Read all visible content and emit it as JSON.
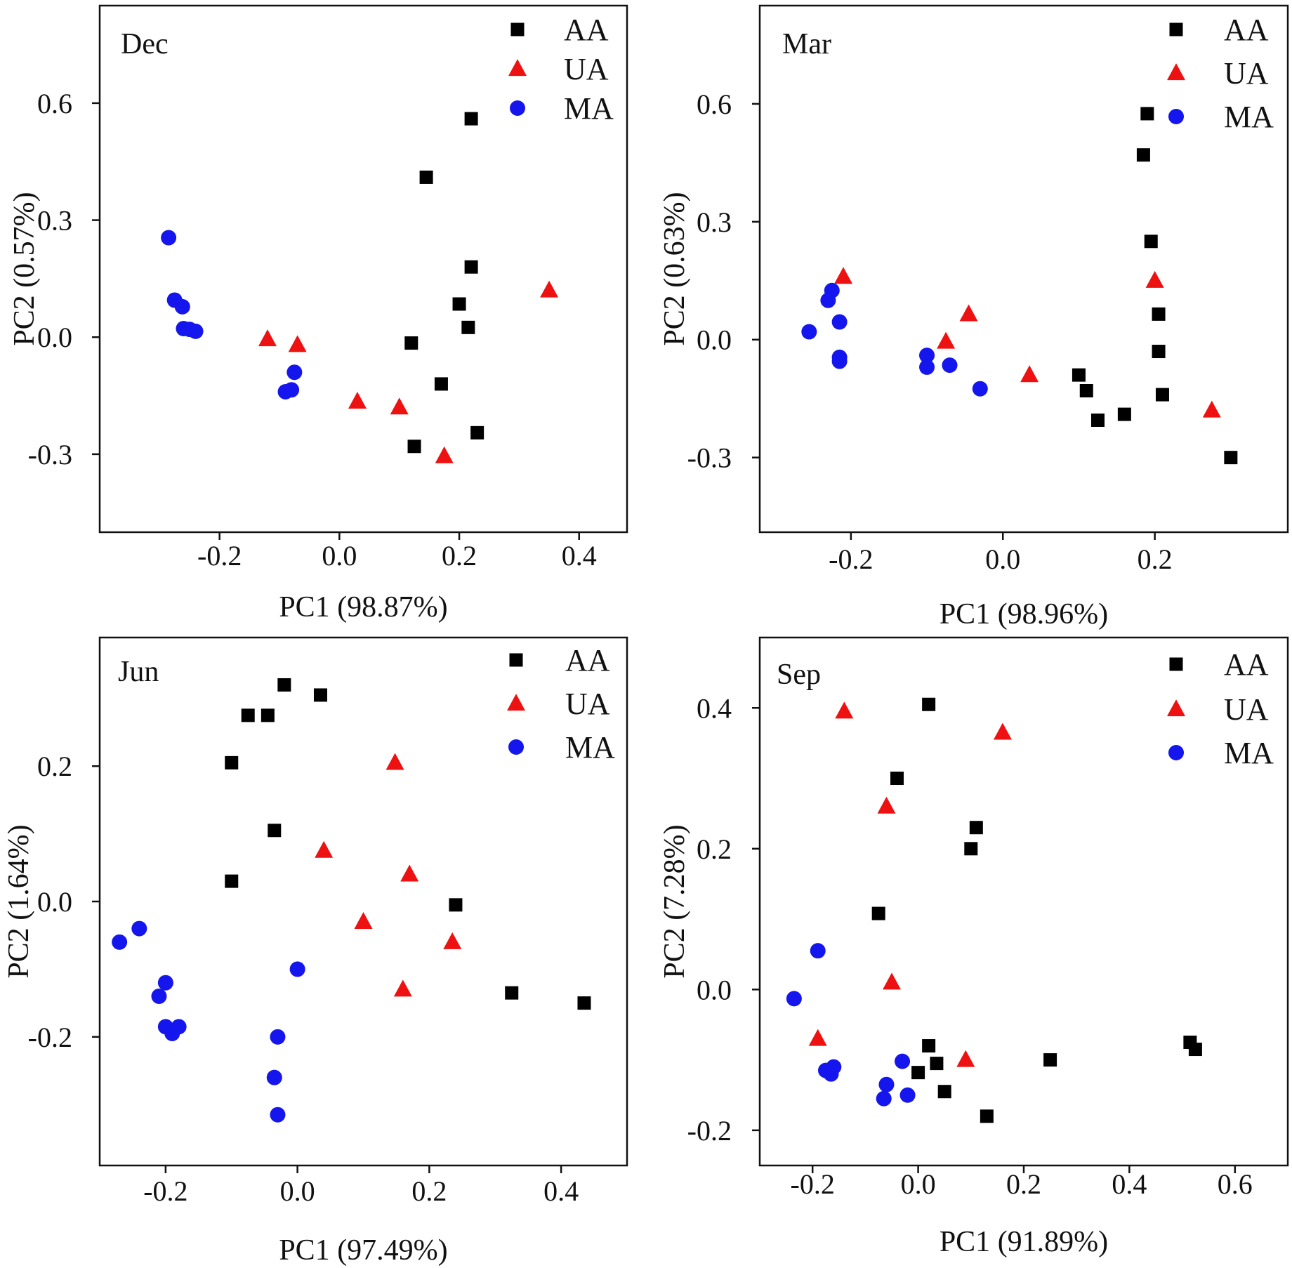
{
  "figure": {
    "legend_labels": [
      "AA",
      "UA",
      "MA"
    ],
    "colors": {
      "AA": "#000000",
      "UA": "#ee1111",
      "MA": "#1515ee"
    }
  },
  "chart_data": [
    {
      "type": "scatter",
      "panel": "Dec",
      "xlabel": "PC1 (98.87%)",
      "ylabel": "PC2 (0.57%)",
      "xlim": [
        -0.4,
        0.48
      ],
      "ylim": [
        -0.5,
        0.85
      ],
      "xticks": [
        -0.2,
        0.0,
        0.2,
        0.4
      ],
      "xtick_labels": [
        "-0.2",
        "0.0",
        "0.2",
        "0.4"
      ],
      "yticks": [
        -0.3,
        0.0,
        0.3,
        0.6
      ],
      "ytick_labels": [
        "-0.3",
        "0.0",
        "0.3",
        "0.6"
      ],
      "legend": [
        "AA",
        "UA",
        "MA"
      ],
      "series": [
        {
          "name": "AA",
          "marker": "square",
          "points": [
            [
              0.22,
              0.56
            ],
            [
              0.145,
              0.41
            ],
            [
              0.22,
              0.18
            ],
            [
              0.2,
              0.085
            ],
            [
              0.215,
              0.025
            ],
            [
              0.12,
              -0.015
            ],
            [
              0.17,
              -0.12
            ],
            [
              0.23,
              -0.245
            ],
            [
              0.125,
              -0.28
            ]
          ]
        },
        {
          "name": "UA",
          "marker": "triangle",
          "points": [
            [
              0.35,
              0.12
            ],
            [
              -0.12,
              -0.005
            ],
            [
              -0.07,
              -0.02
            ],
            [
              0.03,
              -0.165
            ],
            [
              0.1,
              -0.18
            ],
            [
              0.175,
              -0.305
            ]
          ]
        },
        {
          "name": "MA",
          "marker": "circle",
          "points": [
            [
              -0.285,
              0.255
            ],
            [
              -0.275,
              0.095
            ],
            [
              -0.262,
              0.078
            ],
            [
              -0.26,
              0.022
            ],
            [
              -0.25,
              0.02
            ],
            [
              -0.24,
              0.015
            ],
            [
              -0.075,
              -0.09
            ],
            [
              -0.08,
              -0.135
            ],
            [
              -0.09,
              -0.14
            ]
          ]
        }
      ]
    },
    {
      "type": "scatter",
      "panel": "Mar",
      "xlabel": "PC1 (98.96%)",
      "ylabel": "PC2 (0.63%)",
      "xlim": [
        -0.32,
        0.375
      ],
      "ylim": [
        -0.49,
        0.85
      ],
      "xticks": [
        -0.2,
        0.0,
        0.2
      ],
      "xtick_labels": [
        "-0.2",
        "0.0",
        "0.2"
      ],
      "yticks": [
        -0.3,
        0.0,
        0.3,
        0.6
      ],
      "ytick_labels": [
        "-0.3",
        "0.0",
        "0.3",
        "0.6"
      ],
      "legend": [
        "AA",
        "UA",
        "MA"
      ],
      "series": [
        {
          "name": "AA",
          "marker": "square",
          "points": [
            [
              0.19,
              0.575
            ],
            [
              0.185,
              0.47
            ],
            [
              0.195,
              0.25
            ],
            [
              0.205,
              0.065
            ],
            [
              0.205,
              -0.03
            ],
            [
              0.21,
              -0.14
            ],
            [
              0.1,
              -0.09
            ],
            [
              0.11,
              -0.13
            ],
            [
              0.125,
              -0.205
            ],
            [
              0.16,
              -0.19
            ],
            [
              0.3,
              -0.3
            ]
          ]
        },
        {
          "name": "UA",
          "marker": "triangle",
          "points": [
            [
              -0.21,
              0.16
            ],
            [
              -0.045,
              0.065
            ],
            [
              -0.075,
              -0.005
            ],
            [
              0.035,
              -0.09
            ],
            [
              0.2,
              0.15
            ],
            [
              0.275,
              -0.18
            ]
          ]
        },
        {
          "name": "MA",
          "marker": "circle",
          "points": [
            [
              -0.225,
              0.125
            ],
            [
              -0.23,
              0.1
            ],
            [
              -0.255,
              0.02
            ],
            [
              -0.215,
              0.045
            ],
            [
              -0.215,
              -0.045
            ],
            [
              -0.215,
              -0.055
            ],
            [
              -0.1,
              -0.04
            ],
            [
              -0.1,
              -0.07
            ],
            [
              -0.07,
              -0.065
            ],
            [
              -0.03,
              -0.125
            ]
          ]
        }
      ]
    },
    {
      "type": "scatter",
      "panel": "Jun",
      "xlabel": "PC1 (97.49%)",
      "ylabel": "PC2 (1.64%)",
      "xlim": [
        -0.3,
        0.5
      ],
      "ylim": [
        -0.39,
        0.39
      ],
      "xticks": [
        -0.2,
        0.0,
        0.2,
        0.4
      ],
      "xtick_labels": [
        "-0.2",
        "0.0",
        "0.2",
        "0.4"
      ],
      "yticks": [
        -0.2,
        0.0,
        0.2
      ],
      "ytick_labels": [
        "-0.2",
        "0.0",
        "0.2"
      ],
      "legend": [
        "AA",
        "UA",
        "MA"
      ],
      "series": [
        {
          "name": "AA",
          "marker": "square",
          "points": [
            [
              -0.02,
              0.32
            ],
            [
              0.035,
              0.305
            ],
            [
              -0.075,
              0.275
            ],
            [
              -0.045,
              0.275
            ],
            [
              -0.1,
              0.205
            ],
            [
              -0.035,
              0.105
            ],
            [
              -0.1,
              0.03
            ],
            [
              0.24,
              -0.005
            ],
            [
              0.325,
              -0.135
            ],
            [
              0.435,
              -0.15
            ]
          ]
        },
        {
          "name": "UA",
          "marker": "triangle",
          "points": [
            [
              0.148,
              0.205
            ],
            [
              0.04,
              0.075
            ],
            [
              0.17,
              0.04
            ],
            [
              0.1,
              -0.03
            ],
            [
              0.235,
              -0.06
            ],
            [
              0.16,
              -0.13
            ]
          ]
        },
        {
          "name": "MA",
          "marker": "circle",
          "points": [
            [
              -0.27,
              -0.06
            ],
            [
              -0.24,
              -0.04
            ],
            [
              -0.2,
              -0.12
            ],
            [
              -0.21,
              -0.14
            ],
            [
              -0.2,
              -0.185
            ],
            [
              -0.18,
              -0.185
            ],
            [
              -0.19,
              -0.195
            ],
            [
              0.0,
              -0.1
            ],
            [
              -0.03,
              -0.2
            ],
            [
              -0.035,
              -0.26
            ],
            [
              -0.03,
              -0.315
            ]
          ]
        }
      ]
    },
    {
      "type": "scatter",
      "panel": "Sep",
      "xlabel": "PC1 (91.89%)",
      "ylabel": "PC2 (7.28%)",
      "xlim": [
        -0.3,
        0.7
      ],
      "ylim": [
        -0.25,
        0.5
      ],
      "xticks": [
        -0.2,
        0.0,
        0.2,
        0.4,
        0.6
      ],
      "xtick_labels": [
        "-0.2",
        "0.0",
        "0.2",
        "0.4",
        "0.6"
      ],
      "yticks": [
        -0.2,
        0.0,
        0.2,
        0.4
      ],
      "ytick_labels": [
        "-0.2",
        "0.0",
        "0.2",
        "0.4"
      ],
      "legend": [
        "AA",
        "UA",
        "MA"
      ],
      "series": [
        {
          "name": "AA",
          "marker": "square",
          "points": [
            [
              0.02,
              0.405
            ],
            [
              -0.04,
              0.3
            ],
            [
              0.11,
              0.23
            ],
            [
              0.1,
              0.2
            ],
            [
              -0.075,
              0.108
            ],
            [
              0.02,
              -0.08
            ],
            [
              0.0,
              -0.118
            ],
            [
              0.035,
              -0.105
            ],
            [
              0.05,
              -0.145
            ],
            [
              0.13,
              -0.18
            ],
            [
              0.25,
              -0.1
            ],
            [
              0.515,
              -0.075
            ],
            [
              0.525,
              -0.085
            ]
          ]
        },
        {
          "name": "UA",
          "marker": "triangle",
          "points": [
            [
              -0.14,
              0.395
            ],
            [
              0.16,
              0.365
            ],
            [
              -0.06,
              0.26
            ],
            [
              -0.05,
              0.01
            ],
            [
              -0.19,
              -0.07
            ],
            [
              0.09,
              -0.1
            ]
          ]
        },
        {
          "name": "MA",
          "marker": "circle",
          "points": [
            [
              -0.19,
              0.055
            ],
            [
              -0.235,
              -0.013
            ],
            [
              -0.175,
              -0.115
            ],
            [
              -0.16,
              -0.11
            ],
            [
              -0.165,
              -0.12
            ],
            [
              -0.03,
              -0.102
            ],
            [
              -0.06,
              -0.135
            ],
            [
              -0.065,
              -0.155
            ],
            [
              -0.02,
              -0.15
            ]
          ]
        }
      ]
    }
  ]
}
